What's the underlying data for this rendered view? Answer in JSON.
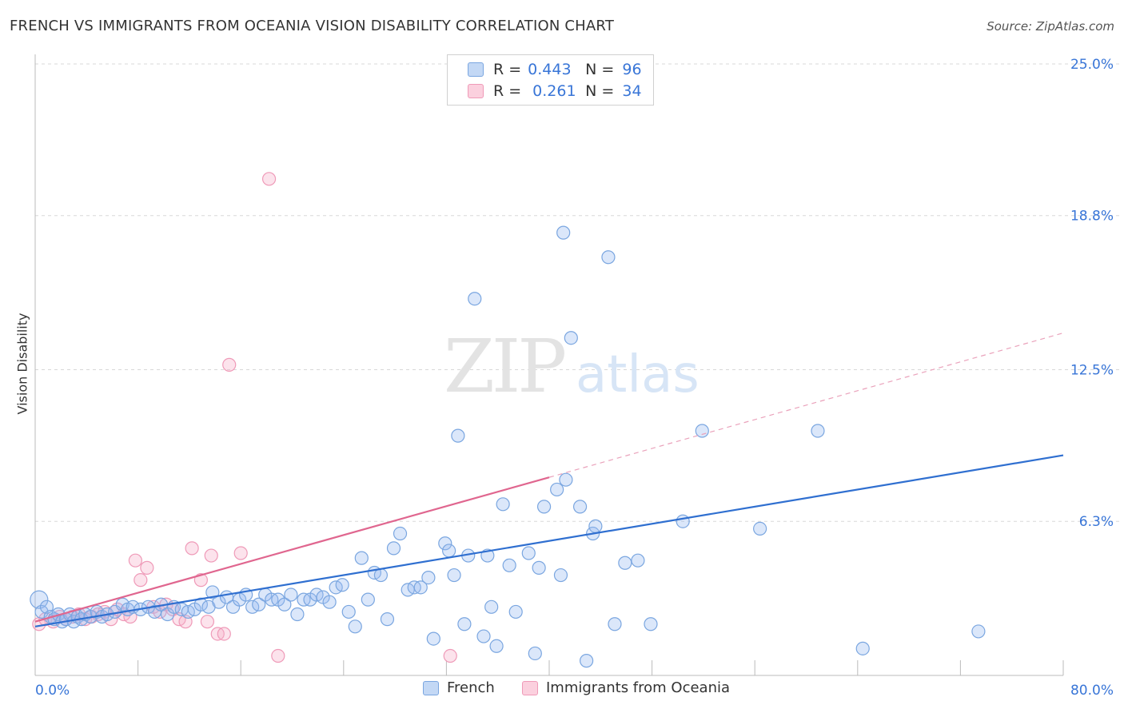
{
  "title": "FRENCH VS IMMIGRANTS FROM OCEANIA VISION DISABILITY CORRELATION CHART",
  "source": "Source: ZipAtlas.com",
  "watermark": {
    "zip": "ZIP",
    "atlas": "atlas"
  },
  "legend_top": [
    {
      "r_label": "R =",
      "r_value": "0.443",
      "n_label": "N =",
      "n_value": "96"
    },
    {
      "r_label": "R =",
      "r_value": "0.261",
      "n_label": "N =",
      "n_value": "34"
    }
  ],
  "legend_bottom": [
    "French",
    "Immigrants from Oceania"
  ],
  "colors": {
    "french_fill": "rgba(151,187,240,0.35)",
    "french_stroke": "#7aa6e0",
    "french_line": "#2f6fd0",
    "oceania_fill": "rgba(247,176,201,0.35)",
    "oceania_stroke": "#ef9ab8",
    "oceania_line": "#e0668f",
    "tick_label": "#3875d7",
    "grid": "#d8d8d8"
  },
  "chart_data": {
    "type": "scatter",
    "title": "FRENCH VS IMMIGRANTS FROM OCEANIA VISION DISABILITY CORRELATION CHART",
    "xlabel": "",
    "ylabel": "Vision Disability",
    "xlim": [
      0,
      80
    ],
    "ylim": [
      0,
      25
    ],
    "x_tick_labels": [
      "0.0%",
      "80.0%"
    ],
    "y_ticks": [
      6.3,
      12.5,
      18.8,
      25.0
    ],
    "y_tick_labels": [
      "6.3%",
      "12.5%",
      "18.8%",
      "25.0%"
    ],
    "grid": "horizontal dashed",
    "legend_position": "top-center",
    "series": [
      {
        "name": "French",
        "R": 0.443,
        "N": 96,
        "trend": {
          "x0": 0,
          "y0": 2.0,
          "x1": 80,
          "y1": 9.0
        },
        "points": [
          [
            0.3,
            3.1
          ],
          [
            0.5,
            2.6
          ],
          [
            0.9,
            2.8
          ],
          [
            1.2,
            2.4
          ],
          [
            1.5,
            2.3
          ],
          [
            1.8,
            2.5
          ],
          [
            2.1,
            2.2
          ],
          [
            2.4,
            2.3
          ],
          [
            2.7,
            2.5
          ],
          [
            3.0,
            2.2
          ],
          [
            3.3,
            2.4
          ],
          [
            3.6,
            2.3
          ],
          [
            3.9,
            2.5
          ],
          [
            4.3,
            2.4
          ],
          [
            4.8,
            2.6
          ],
          [
            5.2,
            2.4
          ],
          [
            5.6,
            2.5
          ],
          [
            6.2,
            2.6
          ],
          [
            6.8,
            2.9
          ],
          [
            7.2,
            2.7
          ],
          [
            7.6,
            2.8
          ],
          [
            8.2,
            2.7
          ],
          [
            8.8,
            2.8
          ],
          [
            9.3,
            2.6
          ],
          [
            9.8,
            2.9
          ],
          [
            10.3,
            2.5
          ],
          [
            10.8,
            2.8
          ],
          [
            11.4,
            2.7
          ],
          [
            11.9,
            2.6
          ],
          [
            12.4,
            2.7
          ],
          [
            12.9,
            2.9
          ],
          [
            13.5,
            2.8
          ],
          [
            13.8,
            3.4
          ],
          [
            14.3,
            3.0
          ],
          [
            14.9,
            3.2
          ],
          [
            15.4,
            2.8
          ],
          [
            15.9,
            3.1
          ],
          [
            16.4,
            3.3
          ],
          [
            16.9,
            2.8
          ],
          [
            17.4,
            2.9
          ],
          [
            17.9,
            3.3
          ],
          [
            18.4,
            3.1
          ],
          [
            18.9,
            3.1
          ],
          [
            19.4,
            2.9
          ],
          [
            19.9,
            3.3
          ],
          [
            20.4,
            2.5
          ],
          [
            20.9,
            3.1
          ],
          [
            21.4,
            3.1
          ],
          [
            21.9,
            3.3
          ],
          [
            22.4,
            3.2
          ],
          [
            22.9,
            3.0
          ],
          [
            23.4,
            3.6
          ],
          [
            23.9,
            3.7
          ],
          [
            24.4,
            2.6
          ],
          [
            24.9,
            2.0
          ],
          [
            25.4,
            4.8
          ],
          [
            25.9,
            3.1
          ],
          [
            26.4,
            4.2
          ],
          [
            26.9,
            4.1
          ],
          [
            27.4,
            2.3
          ],
          [
            27.9,
            5.2
          ],
          [
            28.4,
            5.8
          ],
          [
            29.0,
            3.5
          ],
          [
            29.5,
            3.6
          ],
          [
            30.0,
            3.6
          ],
          [
            30.6,
            4.0
          ],
          [
            31.0,
            1.5
          ],
          [
            31.9,
            5.4
          ],
          [
            32.2,
            5.1
          ],
          [
            32.6,
            4.1
          ],
          [
            32.9,
            9.8
          ],
          [
            33.4,
            2.1
          ],
          [
            33.7,
            4.9
          ],
          [
            34.2,
            15.4
          ],
          [
            34.9,
            1.6
          ],
          [
            35.2,
            4.9
          ],
          [
            35.5,
            2.8
          ],
          [
            35.9,
            1.2
          ],
          [
            36.4,
            7.0
          ],
          [
            36.9,
            4.5
          ],
          [
            37.4,
            2.6
          ],
          [
            38.4,
            5.0
          ],
          [
            38.9,
            0.9
          ],
          [
            39.2,
            4.4
          ],
          [
            39.6,
            6.9
          ],
          [
            40.6,
            7.6
          ],
          [
            40.9,
            4.1
          ],
          [
            41.1,
            18.1
          ],
          [
            41.3,
            8.0
          ],
          [
            41.7,
            13.8
          ],
          [
            42.4,
            6.9
          ],
          [
            42.9,
            0.6
          ],
          [
            43.4,
            5.8
          ],
          [
            43.6,
            6.1
          ],
          [
            44.6,
            17.1
          ],
          [
            45.1,
            2.1
          ],
          [
            45.9,
            4.6
          ],
          [
            46.9,
            4.7
          ],
          [
            47.9,
            2.1
          ],
          [
            50.4,
            6.3
          ],
          [
            51.9,
            10.0
          ],
          [
            56.4,
            6.0
          ],
          [
            60.9,
            10.0
          ],
          [
            64.4,
            1.1
          ],
          [
            73.4,
            1.8
          ]
        ]
      },
      {
        "name": "Immigrants from Oceania",
        "R": 0.261,
        "N": 34,
        "trend": {
          "x0": 0,
          "y0": 2.2,
          "x1": 40,
          "y1": 8.1
        },
        "trend_extension": {
          "x0": 40,
          "y0": 8.1,
          "x1": 80,
          "y1": 14.0
        },
        "points": [
          [
            0.3,
            2.1
          ],
          [
            0.8,
            2.3
          ],
          [
            1.4,
            2.2
          ],
          [
            1.9,
            2.4
          ],
          [
            2.4,
            2.3
          ],
          [
            2.9,
            2.4
          ],
          [
            3.4,
            2.5
          ],
          [
            3.9,
            2.3
          ],
          [
            4.4,
            2.4
          ],
          [
            4.9,
            2.5
          ],
          [
            5.4,
            2.6
          ],
          [
            5.9,
            2.3
          ],
          [
            6.4,
            2.7
          ],
          [
            6.9,
            2.5
          ],
          [
            7.4,
            2.4
          ],
          [
            7.8,
            4.7
          ],
          [
            8.2,
            3.9
          ],
          [
            8.7,
            4.4
          ],
          [
            9.2,
            2.8
          ],
          [
            9.7,
            2.6
          ],
          [
            10.2,
            2.9
          ],
          [
            10.7,
            2.7
          ],
          [
            11.2,
            2.3
          ],
          [
            11.7,
            2.2
          ],
          [
            12.2,
            5.2
          ],
          [
            12.9,
            3.9
          ],
          [
            13.4,
            2.2
          ],
          [
            13.7,
            4.9
          ],
          [
            14.2,
            1.7
          ],
          [
            15.1,
            12.7
          ],
          [
            14.7,
            1.7
          ],
          [
            16.0,
            5.0
          ],
          [
            18.9,
            0.8
          ],
          [
            18.2,
            20.3
          ],
          [
            32.3,
            0.8
          ]
        ]
      }
    ]
  }
}
